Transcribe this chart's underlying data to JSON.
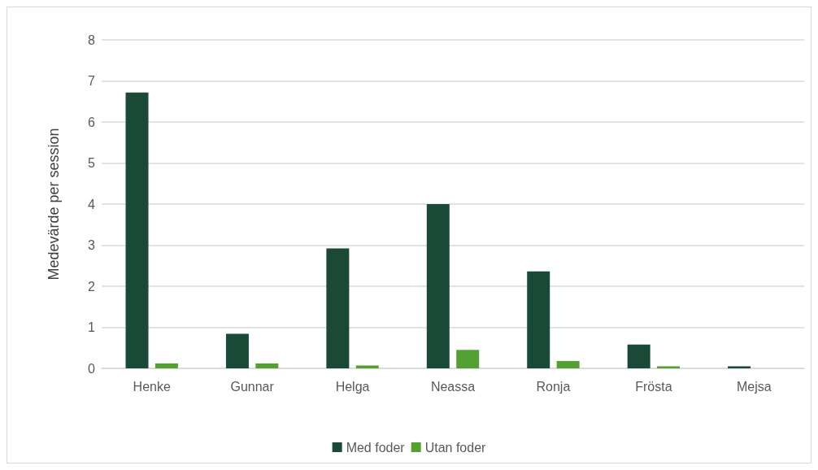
{
  "chart_data": {
    "type": "bar",
    "ylabel": "Medevärde per session",
    "categories": [
      "Henke",
      "Gunnar",
      "Helga",
      "Neassa",
      "Ronja",
      "Frösta",
      "Mejsa"
    ],
    "series": [
      {
        "name": "Med foder",
        "color": "#1a4a37",
        "values": [
          6.72,
          0.84,
          2.92,
          4.0,
          2.36,
          0.58,
          0.05
        ]
      },
      {
        "name": "Utan foder",
        "color": "#55a032",
        "values": [
          0.12,
          0.12,
          0.07,
          0.45,
          0.18,
          0.05,
          0
        ]
      }
    ],
    "ylim": [
      0,
      8
    ],
    "yticks": [
      0,
      1,
      2,
      3,
      4,
      5,
      6,
      7,
      8
    ],
    "grid": "y",
    "legend": "bottom"
  }
}
